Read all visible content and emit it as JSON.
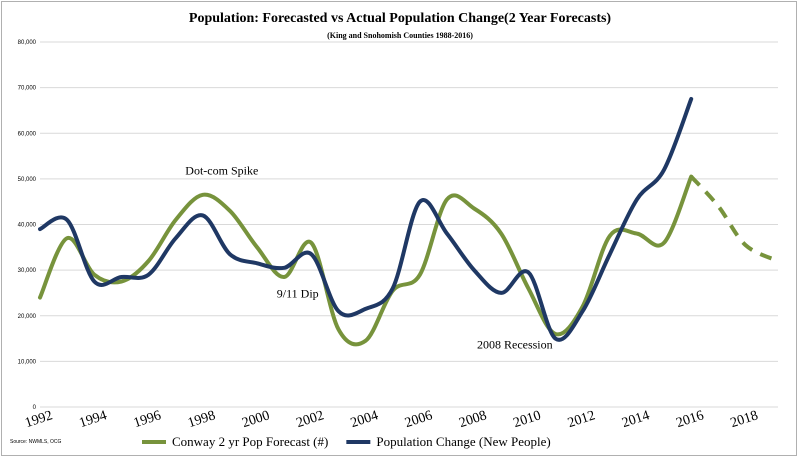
{
  "chart_data": {
    "type": "line",
    "title": "Population: Forecasted vs Actual Population Change(2 Year Forecasts)",
    "subtitle": "(King and Snohomish Counties 1988-2016)",
    "source": "Source: NWMLS, OCG",
    "xlim": [
      1992,
      2019.2
    ],
    "ylim": [
      0,
      80000
    ],
    "grid": true,
    "legend_position": "bottom",
    "x_ticks": [
      "1992",
      "1994",
      "1996",
      "1998",
      "2000",
      "2002",
      "2004",
      "2006",
      "2008",
      "2010",
      "2012",
      "2014",
      "2016",
      "2018"
    ],
    "y_ticks": [
      "0",
      "10,000",
      "20,000",
      "30,000",
      "40,000",
      "50,000",
      "60,000",
      "70,000",
      "80,000"
    ],
    "series": [
      {
        "name": "Conway 2 yr Pop Forecast (#)",
        "color": "#77933c",
        "x": [
          1992,
          1993,
          1994,
          1995,
          1996,
          1997,
          1998,
          1999,
          2000,
          2001,
          2002,
          2003,
          2004,
          2005,
          2006,
          2007,
          2008,
          2009,
          2010,
          2011,
          2012,
          2013,
          2014,
          2015,
          2016
        ],
        "values": [
          24000,
          37000,
          29000,
          27500,
          32000,
          41000,
          46500,
          43000,
          35000,
          28500,
          36000,
          17000,
          14500,
          25500,
          29000,
          45500,
          43500,
          38000,
          26000,
          16000,
          22000,
          37500,
          38000,
          36000,
          50500
        ]
      },
      {
        "name": "Conway 2 yr Pop Forecast (#) (projected)",
        "color": "#77933c",
        "dashed": true,
        "x": [
          2016,
          2017,
          2018,
          2019.2
        ],
        "values": [
          50500,
          44000,
          35500,
          32000
        ]
      },
      {
        "name": "Population Change (New People)",
        "color": "#1f3864",
        "x": [
          1992,
          1993,
          1994,
          1995,
          1996,
          1997,
          1998,
          1999,
          2000,
          2001,
          2002,
          2003,
          2004,
          2005,
          2006,
          2007,
          2008,
          2009,
          2010,
          2011,
          2012,
          2013,
          2014,
          2015,
          2016
        ],
        "values": [
          39000,
          41000,
          27500,
          28500,
          29000,
          37000,
          42000,
          33500,
          31500,
          30500,
          33500,
          21000,
          21500,
          26000,
          45000,
          38000,
          30000,
          25000,
          29500,
          15000,
          21000,
          33500,
          45500,
          52000,
          67500
        ]
      }
    ],
    "annotations": [
      {
        "text": "Dot-com Spike",
        "x": 1998.7,
        "y": 51000
      },
      {
        "text": "9/11 Dip",
        "x": 2001.5,
        "y": 24000
      },
      {
        "text": "2008 Recession",
        "x": 2009.5,
        "y": 12800
      }
    ]
  }
}
